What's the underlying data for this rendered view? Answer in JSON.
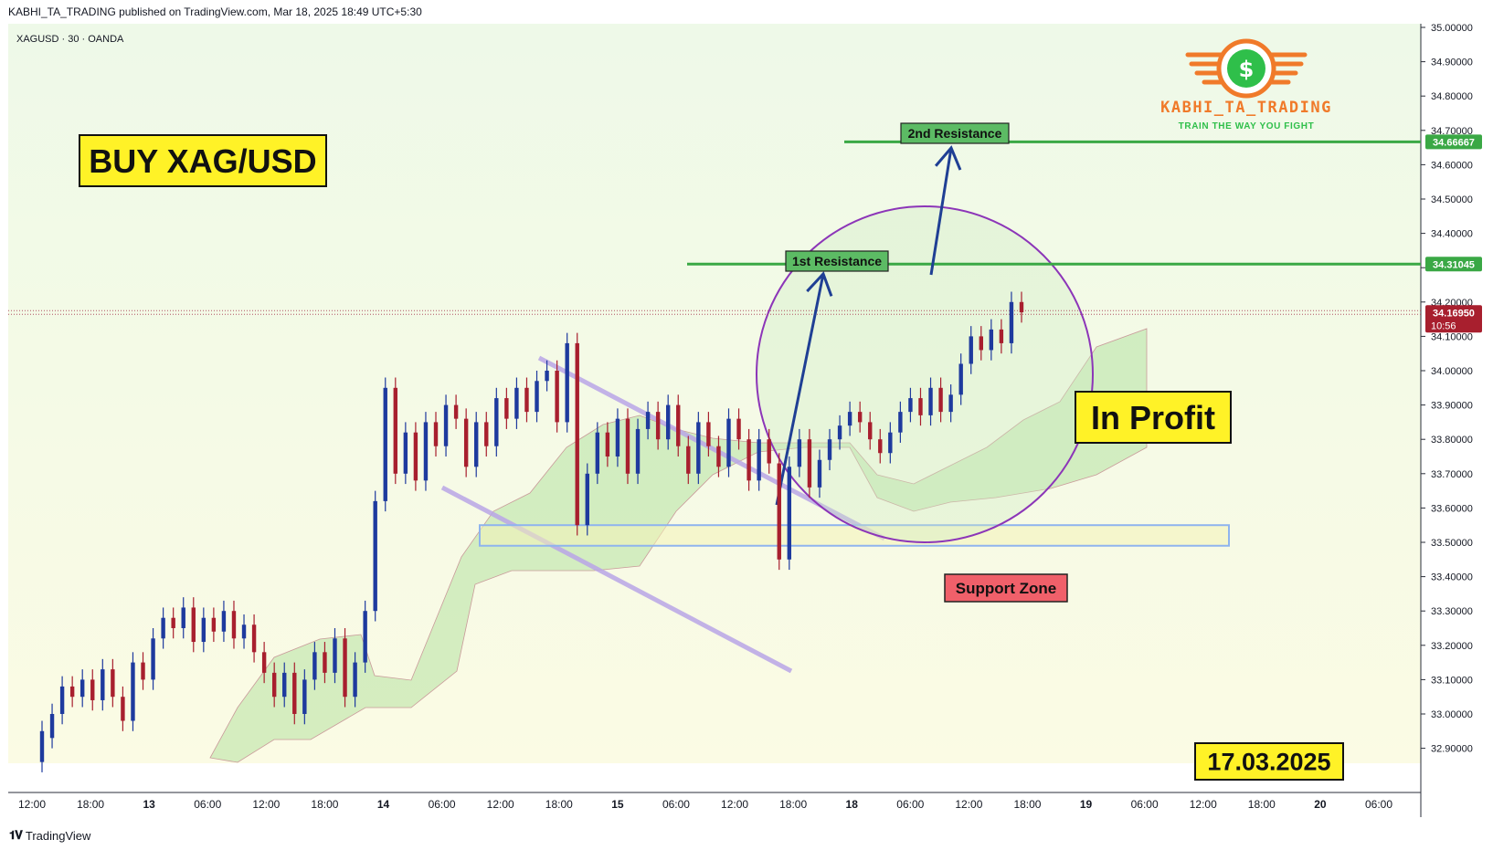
{
  "header": {
    "publisher_line": "KABHI_TA_TRADING published on TradingView.com, Mar 18, 2025 18:49 UTC+5:30"
  },
  "footer": {
    "logo_text": "TradingView"
  },
  "brand": {
    "name": "KABHI_TA_TRADING",
    "tagline": "TRAIN THE WAY YOU FIGHT",
    "logo_symbol": "$",
    "accent_orange": "#f07a2a",
    "accent_green": "#2fbf4a"
  },
  "colors": {
    "up_candle": "#1e3a9e",
    "down_candle": "#a81f2e",
    "resistance_line": "#3aa845",
    "cloud_fill": "#8fd47a",
    "channel": "#b8a4e6",
    "circle": "#8c35b8",
    "price_tag": "#a81f2e",
    "resistance_tag": "#3aa845"
  },
  "chart_data": {
    "type": "candlestick",
    "symbol_line": "XAGUSD · 30 · OANDA",
    "y_ticks": [
      "35.00000",
      "34.90000",
      "34.80000",
      "34.70000",
      "34.60000",
      "34.50000",
      "34.40000",
      "34.30000",
      "34.20000",
      "34.10000",
      "34.00000",
      "33.90000",
      "33.80000",
      "33.70000",
      "33.60000",
      "33.50000",
      "33.40000",
      "33.30000",
      "33.20000",
      "33.10000",
      "33.00000",
      "32.90000"
    ],
    "y_tick_values": [
      35.0,
      34.9,
      34.8,
      34.7,
      34.6,
      34.5,
      34.4,
      34.3,
      34.2,
      34.1,
      34.0,
      33.9,
      33.8,
      33.7,
      33.6,
      33.5,
      33.4,
      33.3,
      33.2,
      33.1,
      33.0,
      32.9
    ],
    "ylim": [
      32.87,
      35.01
    ],
    "x_ticks": [
      "12:00",
      "18:00",
      "13",
      "06:00",
      "12:00",
      "18:00",
      "14",
      "06:00",
      "12:00",
      "18:00",
      "15",
      "06:00",
      "12:00",
      "18:00",
      "18",
      "06:00",
      "12:00",
      "18:00",
      "19",
      "06:00",
      "12:00",
      "18:00",
      "20",
      "06:00"
    ],
    "x_tick_bold": [
      false,
      false,
      true,
      false,
      false,
      false,
      true,
      false,
      false,
      false,
      true,
      false,
      false,
      false,
      true,
      false,
      false,
      false,
      true,
      false,
      false,
      false,
      true,
      false
    ],
    "candle_series": [
      [
        32.86,
        32.95
      ],
      [
        32.93,
        33.0
      ],
      [
        33.0,
        33.08
      ],
      [
        33.08,
        33.05
      ],
      [
        33.05,
        33.1
      ],
      [
        33.1,
        33.04
      ],
      [
        33.04,
        33.13
      ],
      [
        33.13,
        33.05
      ],
      [
        33.05,
        32.98
      ],
      [
        32.98,
        33.15
      ],
      [
        33.15,
        33.1
      ],
      [
        33.1,
        33.22
      ],
      [
        33.22,
        33.28
      ],
      [
        33.28,
        33.25
      ],
      [
        33.25,
        33.31
      ],
      [
        33.31,
        33.21
      ],
      [
        33.21,
        33.28
      ],
      [
        33.28,
        33.24
      ],
      [
        33.24,
        33.3
      ],
      [
        33.3,
        33.22
      ],
      [
        33.22,
        33.26
      ],
      [
        33.26,
        33.18
      ],
      [
        33.18,
        33.12
      ],
      [
        33.12,
        33.05
      ],
      [
        33.05,
        33.12
      ],
      [
        33.12,
        33.0
      ],
      [
        33.0,
        33.1
      ],
      [
        33.1,
        33.18
      ],
      [
        33.18,
        33.12
      ],
      [
        33.12,
        33.22
      ],
      [
        33.22,
        33.05
      ],
      [
        33.05,
        33.15
      ],
      [
        33.15,
        33.3
      ],
      [
        33.3,
        33.62
      ],
      [
        33.62,
        33.95
      ],
      [
        33.95,
        33.7
      ],
      [
        33.7,
        33.82
      ],
      [
        33.82,
        33.68
      ],
      [
        33.68,
        33.85
      ],
      [
        33.85,
        33.78
      ],
      [
        33.78,
        33.9
      ],
      [
        33.9,
        33.86
      ],
      [
        33.86,
        33.72
      ],
      [
        33.72,
        33.85
      ],
      [
        33.85,
        33.78
      ],
      [
        33.78,
        33.92
      ],
      [
        33.92,
        33.86
      ],
      [
        33.86,
        33.95
      ],
      [
        33.95,
        33.88
      ],
      [
        33.88,
        33.97
      ],
      [
        33.97,
        34.0
      ],
      [
        34.0,
        33.85
      ],
      [
        33.85,
        34.08
      ],
      [
        34.08,
        33.55
      ],
      [
        33.55,
        33.7
      ],
      [
        33.7,
        33.82
      ],
      [
        33.82,
        33.75
      ],
      [
        33.75,
        33.86
      ],
      [
        33.86,
        33.7
      ],
      [
        33.7,
        33.83
      ],
      [
        33.83,
        33.88
      ],
      [
        33.88,
        33.8
      ],
      [
        33.8,
        33.9
      ],
      [
        33.9,
        33.78
      ],
      [
        33.78,
        33.7
      ],
      [
        33.7,
        33.85
      ],
      [
        33.85,
        33.78
      ],
      [
        33.78,
        33.72
      ],
      [
        33.72,
        33.86
      ],
      [
        33.86,
        33.8
      ],
      [
        33.8,
        33.68
      ],
      [
        33.68,
        33.8
      ],
      [
        33.8,
        33.73
      ],
      [
        33.73,
        33.45
      ],
      [
        33.45,
        33.72
      ],
      [
        33.72,
        33.8
      ],
      [
        33.8,
        33.66
      ],
      [
        33.66,
        33.74
      ],
      [
        33.74,
        33.8
      ],
      [
        33.8,
        33.84
      ],
      [
        33.84,
        33.88
      ],
      [
        33.88,
        33.85
      ],
      [
        33.85,
        33.8
      ],
      [
        33.8,
        33.76
      ],
      [
        33.76,
        33.82
      ],
      [
        33.82,
        33.88
      ],
      [
        33.88,
        33.92
      ],
      [
        33.92,
        33.87
      ],
      [
        33.87,
        33.95
      ],
      [
        33.95,
        33.88
      ],
      [
        33.88,
        33.93
      ],
      [
        33.93,
        34.02
      ],
      [
        34.02,
        34.1
      ],
      [
        34.1,
        34.06
      ],
      [
        34.06,
        34.12
      ],
      [
        34.12,
        34.08
      ],
      [
        34.08,
        34.2
      ],
      [
        34.2,
        34.17
      ]
    ],
    "resistance_1": "34.31045",
    "resistance_1_value": 34.31045,
    "resistance_2": "34.66667",
    "resistance_2_value": 34.66667,
    "support_zone_range": [
      33.49,
      33.55
    ],
    "current_price": "34.16950",
    "current_price_value": 34.1695,
    "countdown": "10:56",
    "annotations": {
      "buy_label": "BUY XAG/USD",
      "in_profit_label": "In Profit",
      "date_label": "17.03.2025",
      "support_zone_label": "Support Zone",
      "first_resistance_label": "1st Resistance",
      "second_resistance_label": "2nd Resistance"
    },
    "grid": false,
    "legend": "none"
  }
}
